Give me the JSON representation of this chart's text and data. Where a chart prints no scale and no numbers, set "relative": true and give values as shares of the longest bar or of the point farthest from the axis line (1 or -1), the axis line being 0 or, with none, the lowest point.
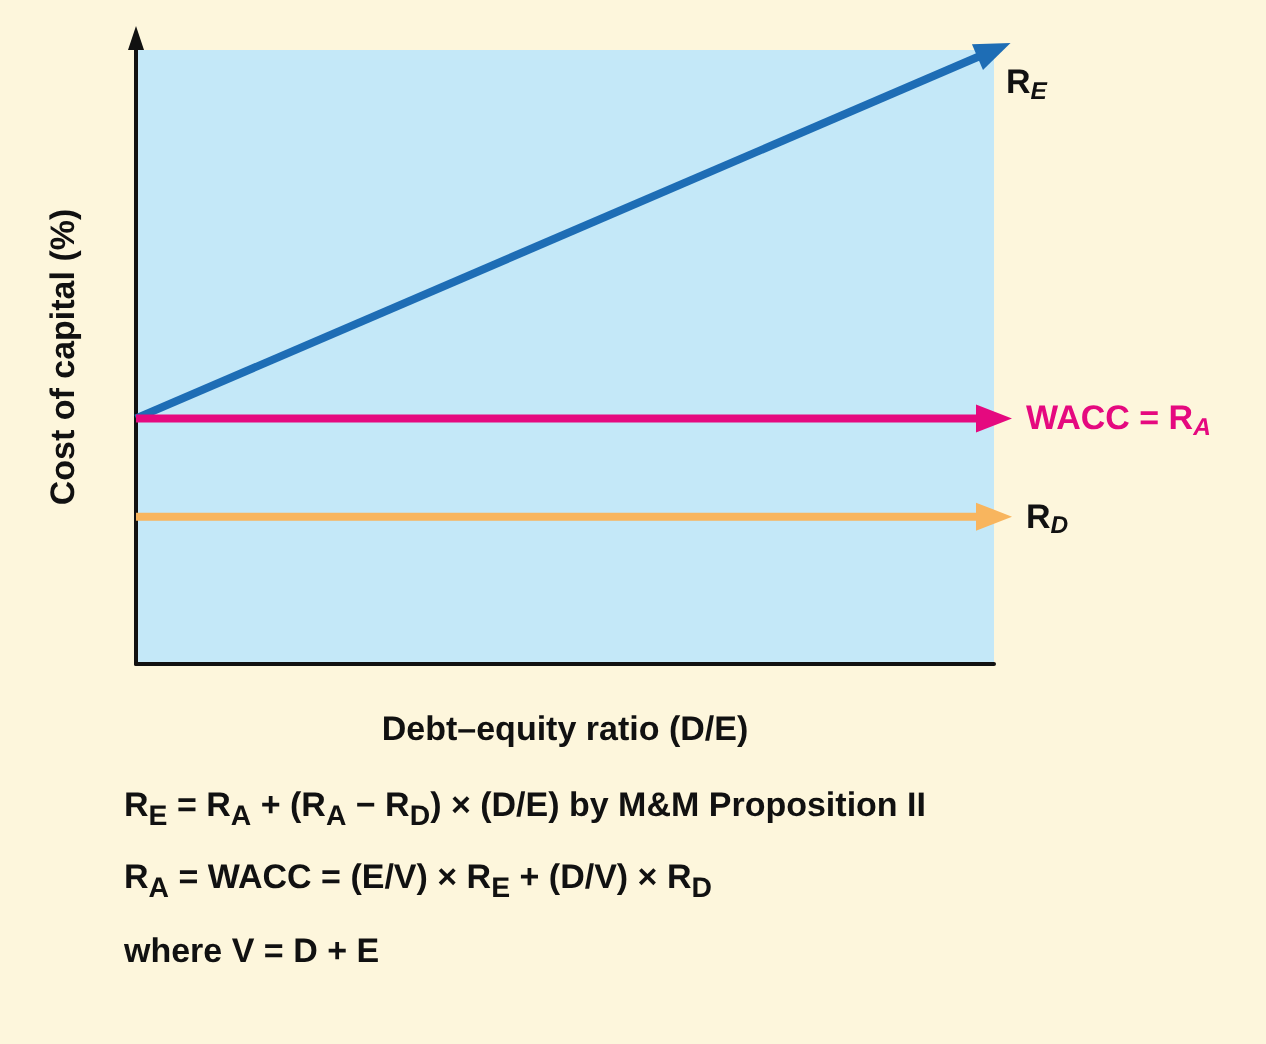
{
  "chart_data": {
    "type": "line",
    "relative": true,
    "xlabel": "Debt–equity ratio (D/E)",
    "ylabel": "Cost of capital (%)",
    "categories": [
      null,
      null
    ],
    "series": [
      {
        "name": "R$_{E}$",
        "color": "#1e6db5",
        "values": [
          0.4,
          1
        ]
      },
      {
        "name": "WACC = R$_{A}$",
        "color": "#e5097f",
        "values": [
          0.4,
          0.4
        ]
      },
      {
        "name": "R$_{D}$",
        "color": "#f8b55e",
        "values": [
          0.24,
          0.24
        ]
      }
    ],
    "annotations": [
      "R$_{E}$ = R$_{A}$ + (R$_{A}$ − R$_{D}$) × (D/E) by M&M Proposition II",
      "R$_{A}$ = WACC = (E/V) × R$_{E}$ + (D/V) × R$_{D}$",
      "where V = D + E"
    ],
    "bands": [
      {
        "axis": "y",
        "from": 0,
        "to": 1,
        "color": "#c4e8f8"
      }
    ],
    "legend": false,
    "grid": false,
    "marker": "triangle",
    "line_style": "solid"
  }
}
